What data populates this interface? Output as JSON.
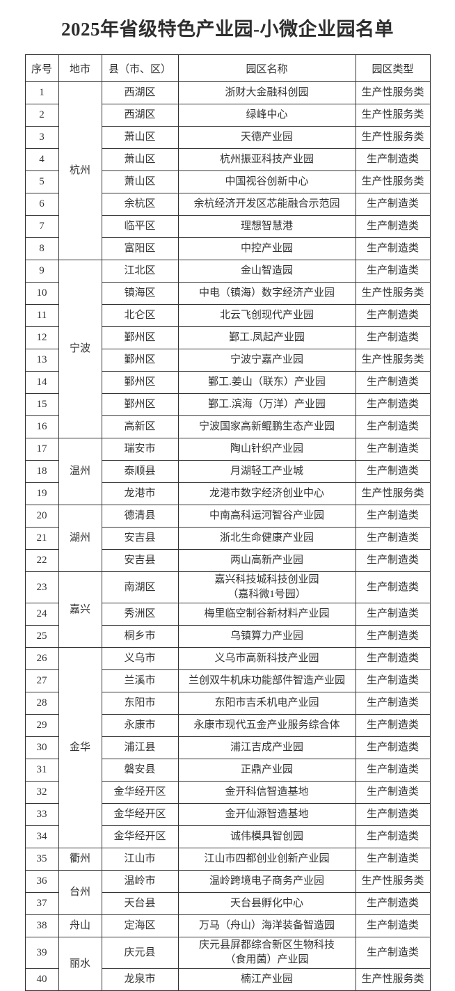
{
  "title": "2025年省级特色产业园-小微企业园名单",
  "colors": {
    "text": "#333333",
    "border": "#333333",
    "background": "#ffffff"
  },
  "table": {
    "headers": [
      "序号",
      "地市",
      "县（市、区）",
      "园区名称",
      "园区类型"
    ],
    "rows": [
      {
        "no": "1",
        "city": "杭州",
        "city_span": 8,
        "city_border_bottom_hidden": true,
        "county": "西湖区",
        "park": "浙财大金融科创园",
        "type": "生产性服务类"
      },
      {
        "no": "2",
        "county": "西湖区",
        "park": "绿峰中心",
        "type": "生产性服务类"
      },
      {
        "no": "3",
        "county": "萧山区",
        "park": "天德产业园",
        "type": "生产性服务类"
      },
      {
        "no": "4",
        "county": "萧山区",
        "park": "杭州振亚科技产业园",
        "type": "生产制造类"
      },
      {
        "no": "5",
        "county": "萧山区",
        "park": "中国视谷创新中心",
        "type": "生产性服务类"
      },
      {
        "no": "6",
        "county": "余杭区",
        "park": "余杭经济开发区芯能融合示范园",
        "type": "生产制造类"
      },
      {
        "no": "7",
        "county": "临平区",
        "park": "理想智慧港",
        "type": "生产制造类"
      },
      {
        "no": "8",
        "county": "富阳区",
        "park": "中控产业园",
        "type": "生产制造类"
      },
      {
        "no": "9",
        "city": "宁波",
        "city_span": 8,
        "city_border_top_hidden": true,
        "county": "江北区",
        "park": "金山智造园",
        "type": "生产制造类"
      },
      {
        "no": "10",
        "county": "镇海区",
        "park": "中电（镇海）数字经济产业园",
        "type": "生产性服务类"
      },
      {
        "no": "11",
        "county": "北仑区",
        "park": "北云飞创现代产业园",
        "type": "生产制造类"
      },
      {
        "no": "12",
        "county": "鄞州区",
        "park": "鄞工.凤起产业园",
        "type": "生产制造类"
      },
      {
        "no": "13",
        "county": "鄞州区",
        "park": "宁波宁嘉产业园",
        "type": "生产性服务类"
      },
      {
        "no": "14",
        "county": "鄞州区",
        "park": "鄞工.姜山（联东）产业园",
        "type": "生产制造类"
      },
      {
        "no": "15",
        "county": "鄞州区",
        "park": "鄞工.滨海（万洋）产业园",
        "type": "生产制造类"
      },
      {
        "no": "16",
        "county": "高新区",
        "park": "宁波国家高新鲲鹏生态产业园",
        "type": "生产制造类"
      },
      {
        "no": "17",
        "city": "温州",
        "city_span": 3,
        "county": "瑞安市",
        "park": "陶山针织产业园",
        "type": "生产制造类"
      },
      {
        "no": "18",
        "county": "泰顺县",
        "park": "月湖轻工产业城",
        "type": "生产制造类"
      },
      {
        "no": "19",
        "county": "龙港市",
        "park": "龙港市数字经济创业中心",
        "type": "生产性服务类"
      },
      {
        "no": "20",
        "city": "湖州",
        "city_span": 3,
        "city_border_bottom_hidden": true,
        "county": "德清县",
        "park": "中南高科运河智谷产业园",
        "type": "生产制造类"
      },
      {
        "no": "21",
        "county": "安吉县",
        "park": "浙北生命健康产业园",
        "type": "生产制造类"
      },
      {
        "no": "22",
        "county": "安吉县",
        "park": "两山高新产业园",
        "type": "生产制造类"
      },
      {
        "no": "23",
        "city": "嘉兴",
        "city_span": 3,
        "city_border_top_hidden": true,
        "county": "南湖区",
        "park": "嘉兴科技城科技创业园\n（嘉科微1号园）",
        "type": "生产制造类"
      },
      {
        "no": "24",
        "county": "秀洲区",
        "park": "梅里临空制谷新材料产业园",
        "type": "生产制造类"
      },
      {
        "no": "25",
        "county": "桐乡市",
        "park": "乌镇算力产业园",
        "type": "生产制造类"
      },
      {
        "no": "26",
        "city": "金华",
        "city_span": 9,
        "county": "义乌市",
        "park": "义乌市高新科技产业园",
        "type": "生产制造类"
      },
      {
        "no": "27",
        "county": "兰溪市",
        "park": "兰创双牛机床功能部件智造产业园",
        "type": "生产制造类"
      },
      {
        "no": "28",
        "county": "东阳市",
        "park": "东阳市吉禾机电产业园",
        "type": "生产制造类"
      },
      {
        "no": "29",
        "county": "永康市",
        "park": "永康市现代五金产业服务综合体",
        "type": "生产制造类"
      },
      {
        "no": "30",
        "county": "浦江县",
        "park": "浦江吉成产业园",
        "type": "生产制造类"
      },
      {
        "no": "31",
        "county": "磐安县",
        "park": "正鼎产业园",
        "type": "生产制造类"
      },
      {
        "no": "32",
        "county": "金华经开区",
        "park": "金开科信智造基地",
        "type": "生产制造类"
      },
      {
        "no": "33",
        "county": "金华经开区",
        "park": "金开仙源智造基地",
        "type": "生产制造类"
      },
      {
        "no": "34",
        "county": "金华经开区",
        "park": "诚伟模具智创园",
        "type": "生产制造类"
      },
      {
        "no": "35",
        "city": "衢州",
        "city_span": 1,
        "county": "江山市",
        "park": "江山市四都创业创新产业园",
        "type": "生产制造类"
      },
      {
        "no": "36",
        "city": "台州",
        "city_span": 2,
        "county": "温岭市",
        "park": "温岭跨境电子商务产业园",
        "type": "生产性服务类"
      },
      {
        "no": "37",
        "county": "天台县",
        "park": "天台县孵化中心",
        "type": "生产制造类"
      },
      {
        "no": "38",
        "city": "舟山",
        "city_span": 1,
        "county": "定海区",
        "park": "万马（舟山）海洋装备智造园",
        "type": "生产制造类"
      },
      {
        "no": "39",
        "city": "丽水",
        "city_span": 2,
        "county": "庆元县",
        "park": "庆元县屏都综合新区生物科技\n（食用菌）产业园",
        "type": "生产制造类"
      },
      {
        "no": "40",
        "county": "龙泉市",
        "park": "楠江产业园",
        "type": "生产性服务类"
      }
    ]
  }
}
